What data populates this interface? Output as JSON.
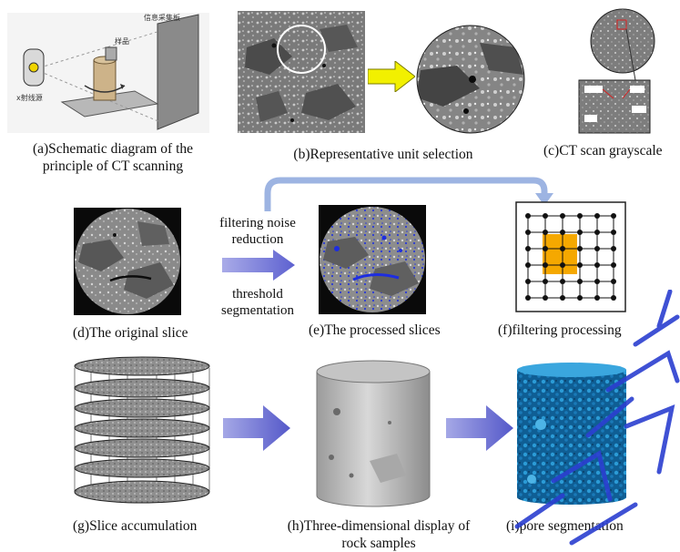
{
  "captions": {
    "a_line1": "(a)Schematic diagram of the",
    "a_line2": "principle of CT scanning",
    "b": "(b)Representative unit selection",
    "c": "(c)CT scan grayscale",
    "d": "(d)The original slice",
    "e": "(e)The processed slices",
    "f": "(f)filtering processing",
    "g": "(g)Slice accumulation",
    "h_line1": "(h)Three-dimensional display of",
    "h_line2": "rock samples",
    "i": "(i)pore segmentation"
  },
  "arrow_labels": {
    "top_line1": "filtering noise",
    "top_line2": "reduction",
    "bottom_line1": "threshold",
    "bottom_line2": "segmentation"
  },
  "colors": {
    "arrow_blue": "#6f72d8",
    "flow_arrow": "#9db4e2",
    "yellow_arrow": "#f2f000",
    "highlight": "#f5a800",
    "pore_blue": "#1e7ab8",
    "watermark": "#2b3fd0"
  }
}
